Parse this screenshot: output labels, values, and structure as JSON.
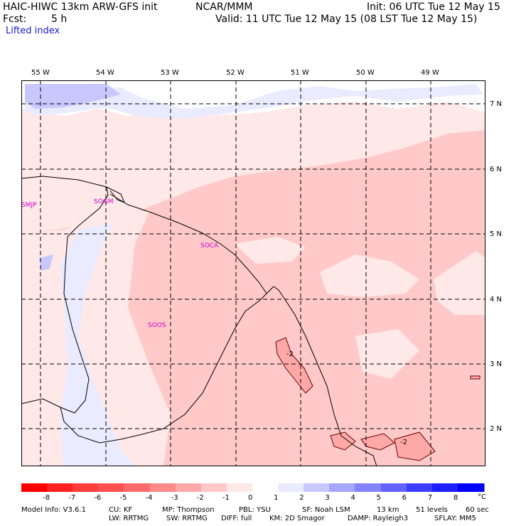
{
  "header": {
    "model": "HAIC-HIWC 13km ARW-GFS init",
    "org": "NCAR/MMM",
    "init": "Init: 06 UTC Tue 12 May 15",
    "fcst_label": "Fcst:",
    "fcst_value": "5 h",
    "valid": "Valid: 11 UTC Tue 12 May 15 (08 LST Tue 12 May 15)",
    "field": "Lifted index"
  },
  "map": {
    "lon_labels": [
      "55 W",
      "54 W",
      "53 W",
      "52 W",
      "51 W",
      "50 W",
      "49 W"
    ],
    "lat_labels": [
      "7 N",
      "6 N",
      "5 N",
      "4 N",
      "3 N",
      "2 N"
    ],
    "stations": [
      "SMJP",
      "SOGM",
      "SOCA",
      "SOOS"
    ],
    "contour_labels": [
      "-2",
      "-2"
    ]
  },
  "colorbar": {
    "labels": [
      "-8",
      "-7",
      "-6",
      "-5",
      "-4",
      "-3",
      "-2",
      "-1",
      "0",
      "1",
      "2",
      "3",
      "4",
      "5",
      "6",
      "7",
      "8"
    ],
    "unit": "°C",
    "colors": [
      "#ff0000",
      "#ff2020",
      "#ff3c3c",
      "#ff5050",
      "#ff6a6a",
      "#ff8a8a",
      "#ffa8a8",
      "#ffc8c8",
      "#ffe8e8",
      "#ffffff",
      "#ebebff",
      "#c8c8ff",
      "#a6a6ff",
      "#8484ff",
      "#6262ff",
      "#3c3cff",
      "#1e1eff",
      "#0000ff"
    ]
  },
  "model_info": {
    "line1": [
      "Model Info: V3.6.1",
      "CU: KF",
      "MP: Thompson",
      "PBL: YSU",
      "SF: Noah LSM",
      "13 km",
      "51 levels",
      "60 sec"
    ],
    "line2": [
      "LW: RRTMG",
      "SW: RRTMG",
      "DIFF: full",
      "KM: 2D Smagor",
      "DAMP: Rayleigh3",
      "SFLAY: MM5"
    ]
  }
}
